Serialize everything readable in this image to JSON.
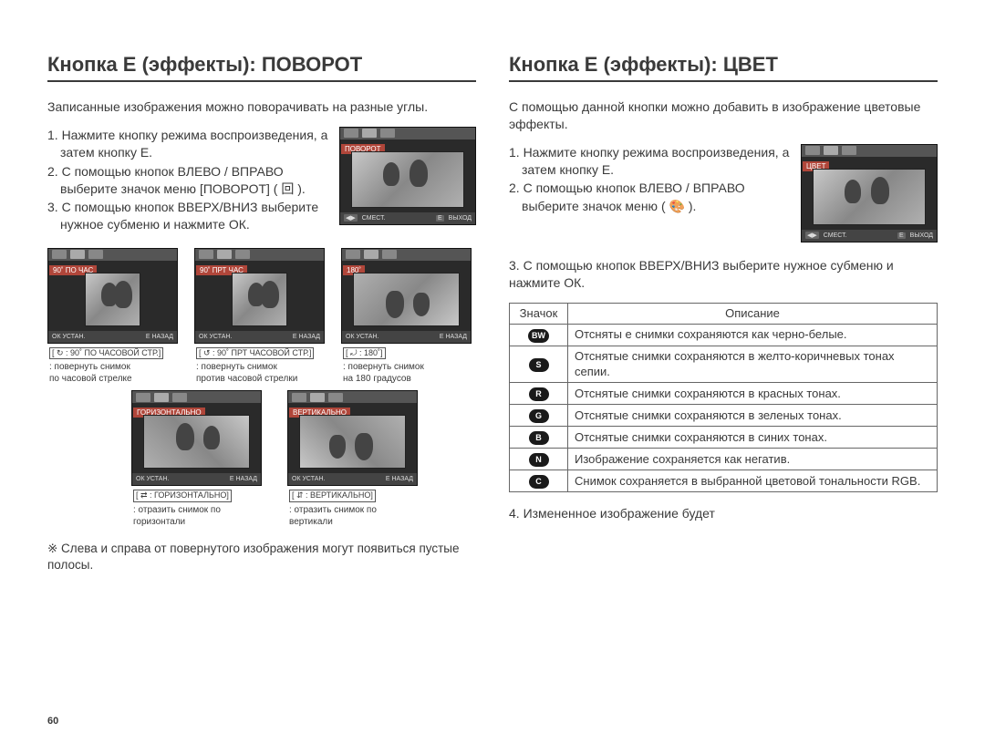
{
  "page_number": "60",
  "left": {
    "heading": "Кнопка Е (эффекты): ПОВОРОТ",
    "intro": "Записанные изображения можно поворачивать на разные углы.",
    "steps": [
      "1. Нажмите кнопку режима воспроизведения, а затем кнопку E.",
      "2. С помощью кнопок ВЛЕВО / ВПРАВО выберите значок меню [ПОВОРОТ] ( 回 ).",
      "3. С помощью кнопок ВВЕРХ/ВНИЗ выберите нужное субменю и нажмите ОК."
    ],
    "mini_label": "ПОВОРОТ",
    "mini_bottom_left": "СМЕСТ.",
    "mini_bottom_e": "E",
    "mini_bottom_right": "ВЫХОД",
    "rotations": [
      {
        "label": "90˚ ПО ЧАС",
        "boxed": "[ ↻ : 90˚ ПО ЧАСОВОЙ СТР.]",
        "line1": ": повернуть снимок",
        "line2": "  по часовой стрелке",
        "ok": "ОК УСТАН.",
        "back": "E  НАЗАД"
      },
      {
        "label": "90˚ ПРТ ЧАС",
        "boxed": "[ ↺ : 90˚ ПРТ ЧАСОВОЙ СТР.]",
        "line1": ": повернуть снимок",
        "line2": "  против часовой стрелки",
        "ok": "ОК УСТАН.",
        "back": "E  НАЗАД"
      },
      {
        "label": "180˚",
        "boxed": "[ ⤾ : 180˚]",
        "line1": ": повернуть снимок",
        "line2": "  на 180 градусов",
        "ok": "ОК УСТАН.",
        "back": "E  НАЗАД"
      },
      {
        "label": "ГОРИЗОНТАЛЬНО",
        "boxed": "[ ⇄ : ГОРИЗОНТАЛЬНО]",
        "line1": ": отразить снимок по",
        "line2": "  горизонтали",
        "ok": "ОК УСТАН.",
        "back": "E  НАЗАД"
      },
      {
        "label": "ВЕРТИКАЛЬНО",
        "boxed": "[ ⇵ : ВЕРТИКАЛЬНО]",
        "line1": ": отразить снимок по",
        "line2": "  вертикали",
        "ok": "ОК УСТАН.",
        "back": "E  НАЗАД"
      }
    ],
    "note": "※ Слева и справа от повернутого изображения могут появиться пустые полосы."
  },
  "right": {
    "heading": "Кнопка Е (эффекты): ЦВЕТ",
    "intro": "С помощью данной кнопки можно добавить в изображение цветовые эффекты.",
    "steps": [
      "1. Нажмите кнопку режима воспроизведения, а затем кнопку E.",
      "2. С помощью кнопок ВЛЕВО / ВПРАВО выберите значок меню ( 🎨 )."
    ],
    "mini_label": "ЦВЕТ",
    "mini_bottom_left": "СМЕСТ.",
    "mini_bottom_e": "E",
    "mini_bottom_right": "ВЫХОД",
    "step3": "3. С помощью кнопок ВВЕРХ/ВНИЗ выберите нужное субменю и нажмите ОК.",
    "table": {
      "headers": [
        "Значок",
        "Описание"
      ],
      "rows": [
        {
          "icon": "BW",
          "desc": "Отсняты е снимки сохраняются как черно-белые."
        },
        {
          "icon": "S",
          "desc": "Отснятые снимки сохраняются в желто-коричневых тонах сепии."
        },
        {
          "icon": "R",
          "desc": "Отснятые снимки сохраняются в красных тонах."
        },
        {
          "icon": "G",
          "desc": "Отснятые снимки сохраняются в зеленых тонах."
        },
        {
          "icon": "B",
          "desc": "Отснятые снимки сохраняются в синих тонах."
        },
        {
          "icon": "N",
          "desc": "Изображение сохраняется как негатив."
        },
        {
          "icon": "C",
          "desc": "Снимок сохраняется в выбранной цветовой тональности RGB."
        }
      ]
    },
    "step4": "4. Измененное изображение будет",
    "colors": {
      "header_bg": "#555555",
      "label_bg": "#b0463a",
      "border": "#666666",
      "text": "#3a3a3a",
      "badge_bg": "#1a1a1a"
    }
  }
}
